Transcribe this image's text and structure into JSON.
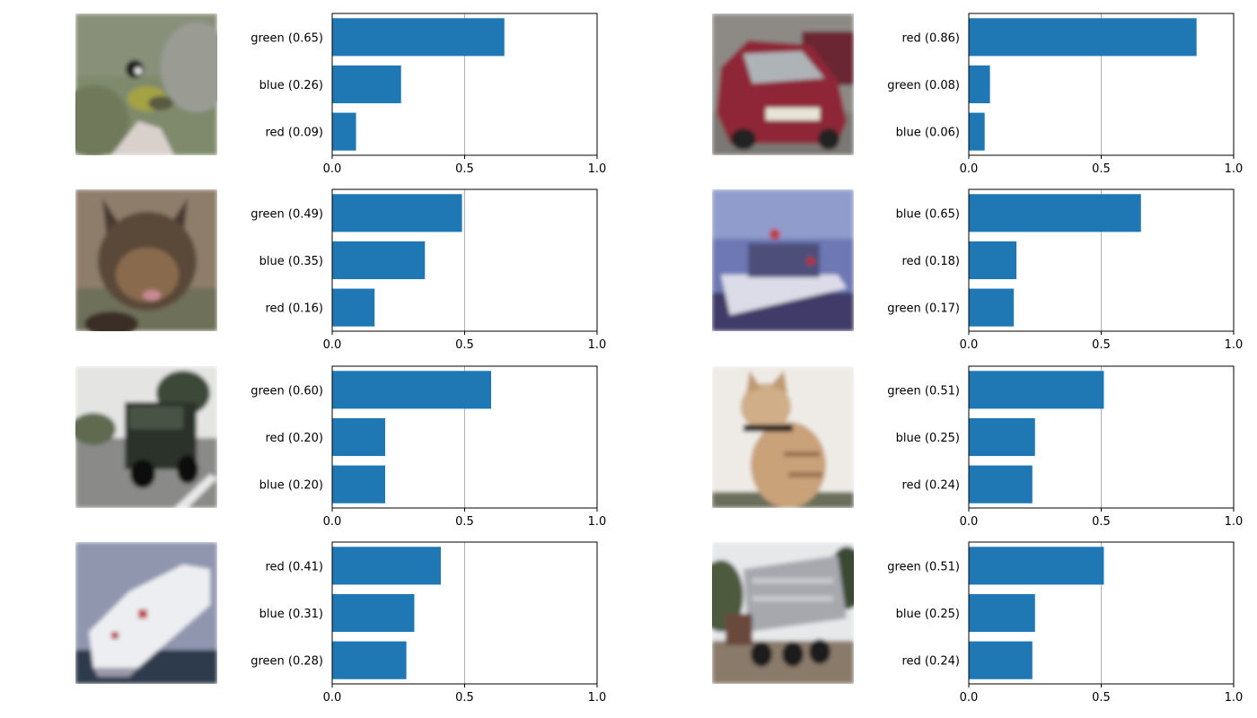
{
  "chart_data": [
    {
      "type": "bar",
      "orientation": "horizontal",
      "image": "bird-photo",
      "categories": [
        "green (0.65)",
        "blue (0.26)",
        "red (0.09)"
      ],
      "values": [
        0.65,
        0.26,
        0.09
      ],
      "xlim": [
        0,
        1
      ],
      "xticks": [
        "0.0",
        "0.5",
        "1.0"
      ],
      "reference_line": 0.5,
      "bar_color": "#1f77b4"
    },
    {
      "type": "bar",
      "orientation": "horizontal",
      "image": "car-photo",
      "categories": [
        "red (0.86)",
        "green (0.08)",
        "blue (0.06)"
      ],
      "values": [
        0.86,
        0.08,
        0.06
      ],
      "xlim": [
        0,
        1
      ],
      "xticks": [
        "0.0",
        "0.5",
        "1.0"
      ],
      "reference_line": 0.5,
      "bar_color": "#1f77b4"
    },
    {
      "type": "bar",
      "orientation": "horizontal",
      "image": "dog-photo",
      "categories": [
        "green (0.49)",
        "blue (0.35)",
        "red (0.16)"
      ],
      "values": [
        0.49,
        0.35,
        0.16
      ],
      "xlim": [
        0,
        1
      ],
      "xticks": [
        "0.0",
        "0.5",
        "1.0"
      ],
      "reference_line": 0.5,
      "bar_color": "#1f77b4"
    },
    {
      "type": "bar",
      "orientation": "horizontal",
      "image": "boat-photo",
      "categories": [
        "blue (0.65)",
        "red (0.18)",
        "green (0.17)"
      ],
      "values": [
        0.65,
        0.18,
        0.17
      ],
      "xlim": [
        0,
        1
      ],
      "xticks": [
        "0.0",
        "0.5",
        "1.0"
      ],
      "reference_line": 0.5,
      "bar_color": "#1f77b4"
    },
    {
      "type": "bar",
      "orientation": "horizontal",
      "image": "truck-photo",
      "categories": [
        "green (0.60)",
        "red (0.20)",
        "blue (0.20)"
      ],
      "values": [
        0.6,
        0.2,
        0.2
      ],
      "xlim": [
        0,
        1
      ],
      "xticks": [
        "0.0",
        "0.5",
        "1.0"
      ],
      "reference_line": 0.5,
      "bar_color": "#1f77b4"
    },
    {
      "type": "bar",
      "orientation": "horizontal",
      "image": "cat-photo",
      "categories": [
        "green (0.51)",
        "blue (0.25)",
        "red (0.24)"
      ],
      "values": [
        0.51,
        0.25,
        0.24
      ],
      "xlim": [
        0,
        1
      ],
      "xticks": [
        "0.0",
        "0.5",
        "1.0"
      ],
      "reference_line": 0.5,
      "bar_color": "#1f77b4"
    },
    {
      "type": "bar",
      "orientation": "horizontal",
      "image": "ship-photo",
      "categories": [
        "red (0.41)",
        "blue (0.31)",
        "green (0.28)"
      ],
      "values": [
        0.41,
        0.31,
        0.28
      ],
      "xlim": [
        0,
        1
      ],
      "xticks": [
        "0.0",
        "0.5",
        "1.0"
      ],
      "reference_line": 0.5,
      "bar_color": "#1f77b4"
    },
    {
      "type": "bar",
      "orientation": "horizontal",
      "image": "dump-truck-photo",
      "categories": [
        "green (0.51)",
        "blue (0.25)",
        "red (0.24)"
      ],
      "values": [
        0.51,
        0.25,
        0.24
      ],
      "xlim": [
        0,
        1
      ],
      "xticks": [
        "0.0",
        "0.5",
        "1.0"
      ],
      "reference_line": 0.5,
      "bar_color": "#1f77b4"
    }
  ]
}
